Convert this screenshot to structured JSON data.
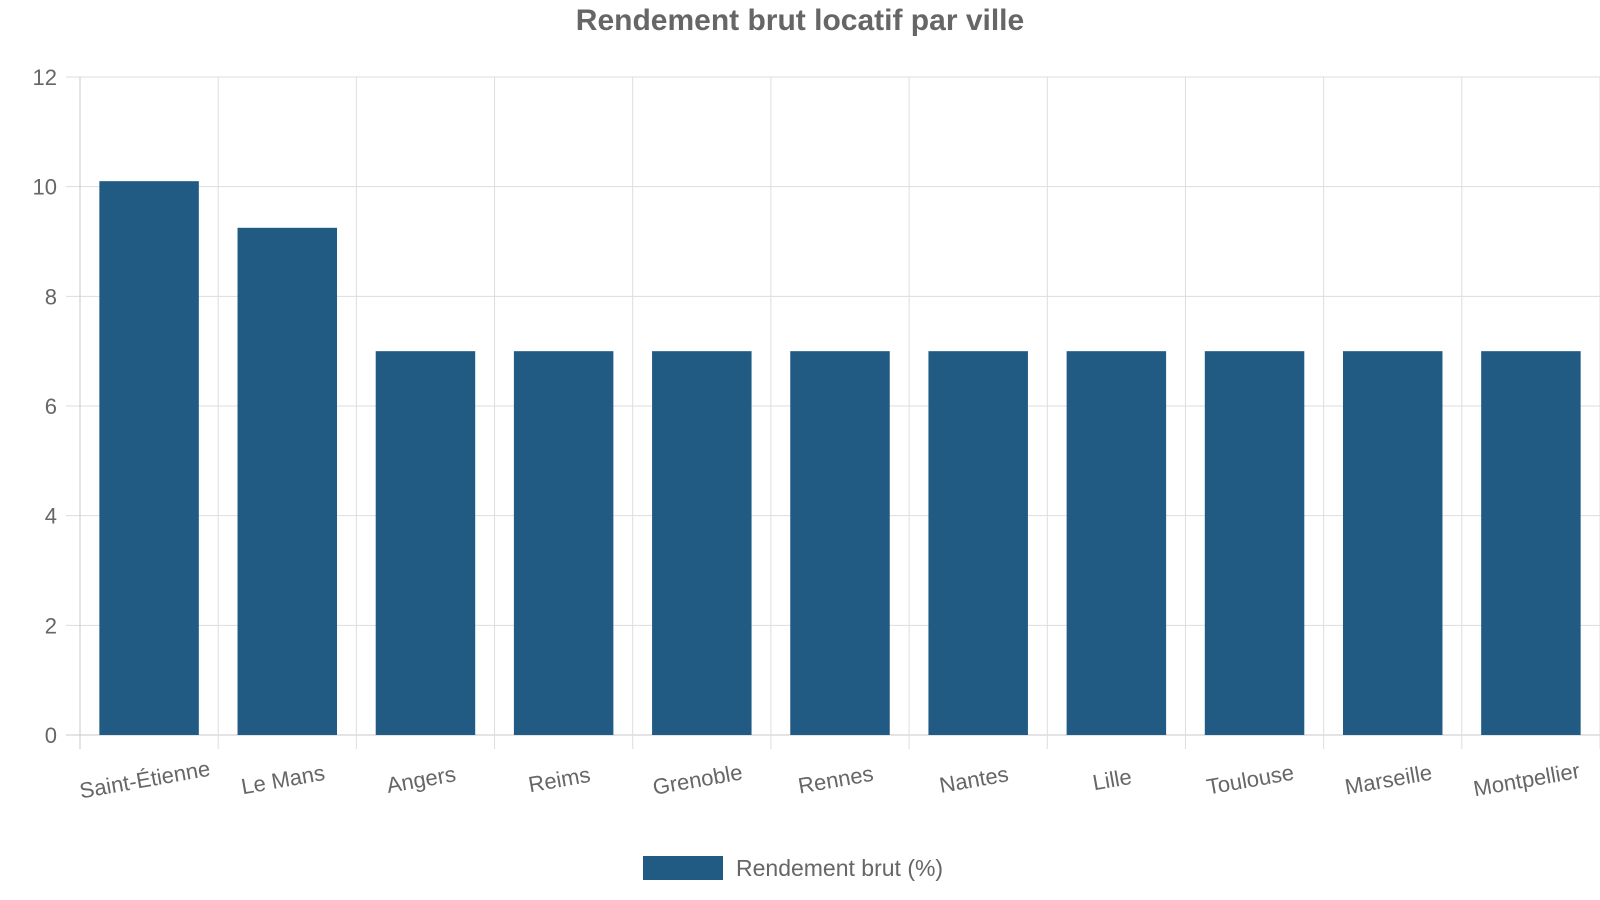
{
  "chart_data": {
    "type": "bar",
    "title": "Rendement brut locatif par ville",
    "categories": [
      "Saint-Étienne",
      "Le Mans",
      "Angers",
      "Reims",
      "Grenoble",
      "Rennes",
      "Nantes",
      "Lille",
      "Toulouse",
      "Marseille",
      "Montpellier"
    ],
    "series": [
      {
        "name": "Rendement brut (%)",
        "values": [
          10.1,
          9.25,
          7,
          7,
          7,
          7,
          7,
          7,
          7,
          7,
          7
        ],
        "color": "#215b84"
      }
    ],
    "yticks": [
      0,
      2,
      4,
      6,
      8,
      10,
      12
    ],
    "ylim": [
      0,
      12
    ],
    "grid": true,
    "legend_position": "bottom",
    "colors": {
      "text": "#666666",
      "grid": "#dddddd",
      "axis": "#c8c8c8"
    }
  }
}
